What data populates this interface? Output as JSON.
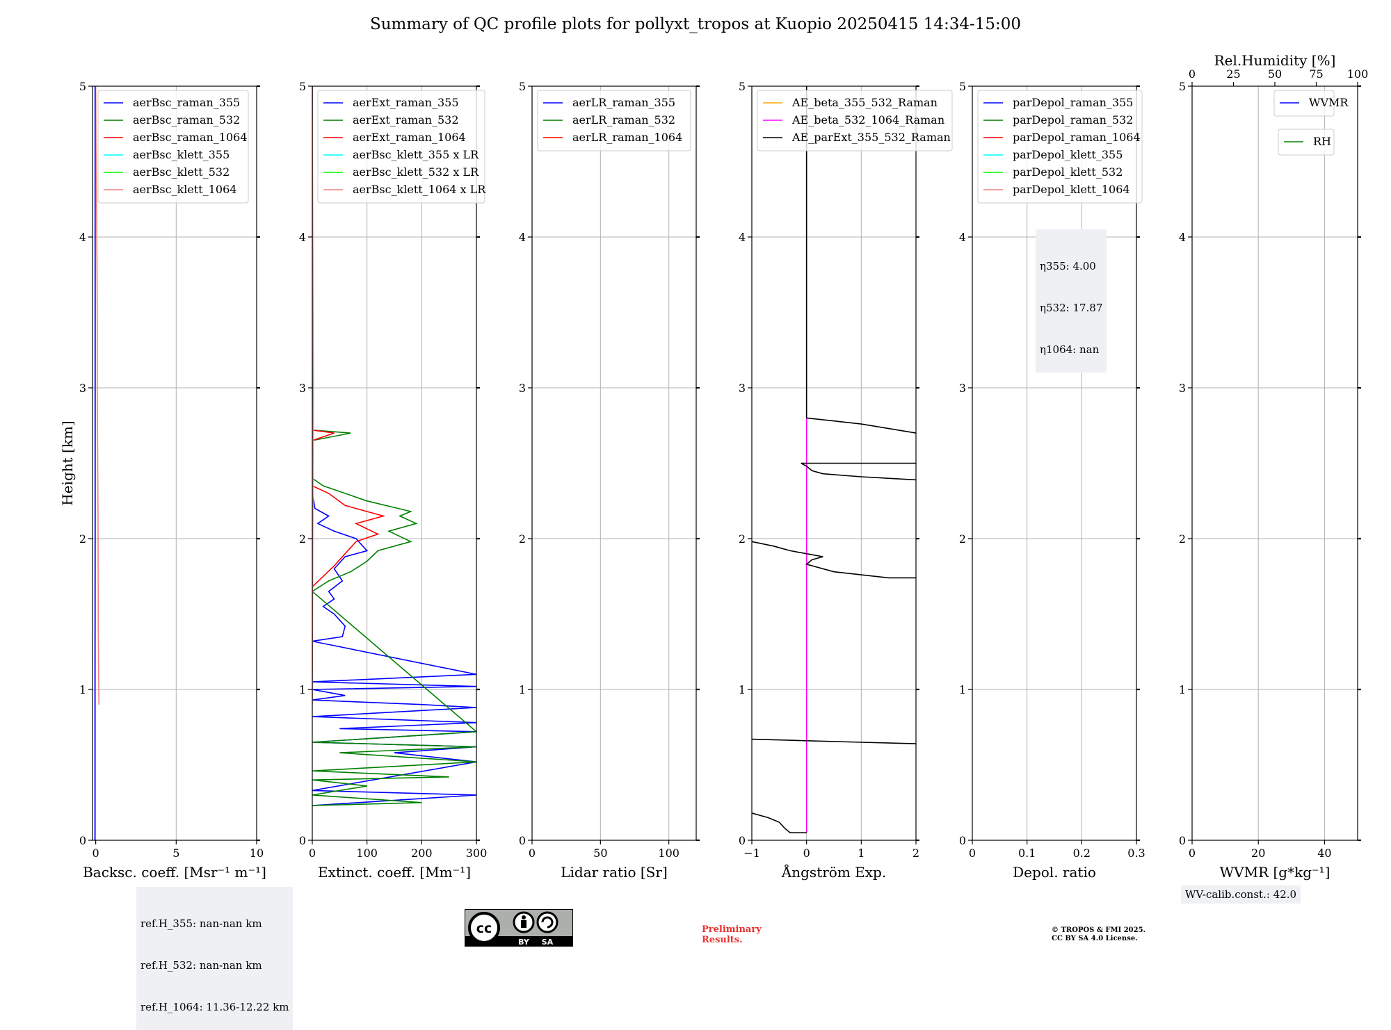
{
  "title": "Summary of QC profile plots for pollyxt_tropos at Kuopio 20250415 14:34-15:00",
  "ylabel": "Height [km]",
  "y_ticks": [
    0,
    1,
    2,
    3,
    4,
    5
  ],
  "ylim": [
    0,
    5
  ],
  "panels": [
    {
      "xlabel": "Backsc. coeff. [Msr⁻¹ m⁻¹]",
      "xlim": [
        -0.2,
        10
      ],
      "xticks": [
        0,
        5,
        10
      ],
      "legend": [
        {
          "label": "aerBsc_raman_355",
          "color": "#0000ff"
        },
        {
          "label": "aerBsc_raman_532",
          "color": "#008000"
        },
        {
          "label": "aerBsc_raman_1064",
          "color": "#ff0000"
        },
        {
          "label": "aerBsc_klett_355",
          "color": "#00ffff"
        },
        {
          "label": "aerBsc_klett_532",
          "color": "#00ff00"
        },
        {
          "label": "aerBsc_klett_1064",
          "color": "#f08080"
        }
      ]
    },
    {
      "xlabel": "Extinct. coeff. [Mm⁻¹]",
      "xlim": [
        0,
        300
      ],
      "xticks": [
        0,
        100,
        200,
        300
      ],
      "legend": [
        {
          "label": "aerExt_raman_355",
          "color": "#0000ff"
        },
        {
          "label": "aerExt_raman_532",
          "color": "#008000"
        },
        {
          "label": "aerExt_raman_1064",
          "color": "#ff0000"
        },
        {
          "label": "aerBsc_klett_355 x LR",
          "color": "#00ffff"
        },
        {
          "label": "aerBsc_klett_532 x LR",
          "color": "#00ff00"
        },
        {
          "label": "aerBsc_klett_1064 x LR",
          "color": "#f08080"
        }
      ]
    },
    {
      "xlabel": "Lidar ratio [Sr]",
      "xlim": [
        0,
        120
      ],
      "xticks": [
        0,
        50,
        100
      ],
      "legend": [
        {
          "label": "aerLR_raman_355",
          "color": "#0000ff"
        },
        {
          "label": "aerLR_raman_532",
          "color": "#008000"
        },
        {
          "label": "aerLR_raman_1064",
          "color": "#ff0000"
        }
      ]
    },
    {
      "xlabel": "Ångström Exp.",
      "xlim": [
        -1,
        2
      ],
      "xticks": [
        -1,
        0,
        1,
        2
      ],
      "legend": [
        {
          "label": "AE_beta_355_532_Raman",
          "color": "#ffa500"
        },
        {
          "label": "AE_beta_532_1064_Raman",
          "color": "#ff00ff"
        },
        {
          "label": "AE_parExt_355_532_Raman",
          "color": "#000000"
        }
      ]
    },
    {
      "xlabel": "Depol. ratio",
      "xlim": [
        0,
        0.3
      ],
      "xticks": [
        0.0,
        0.1,
        0.2,
        0.3
      ],
      "legend": [
        {
          "label": "parDepol_raman_355",
          "color": "#0000ff"
        },
        {
          "label": "parDepol_raman_532",
          "color": "#008000"
        },
        {
          "label": "parDepol_raman_1064",
          "color": "#ff0000"
        },
        {
          "label": "parDepol_klett_355",
          "color": "#00ffff"
        },
        {
          "label": "parDepol_klett_532",
          "color": "#00ff00"
        },
        {
          "label": "parDepol_klett_1064",
          "color": "#f08080"
        }
      ]
    },
    {
      "xlabel": "WVMR [g*kg⁻¹]",
      "xlim": [
        0,
        50
      ],
      "xticks": [
        0,
        20,
        40
      ],
      "top_label": "Rel.Humidity [%]",
      "top_xlim": [
        0,
        100
      ],
      "top_xticks": [
        0,
        25,
        50,
        75,
        100
      ],
      "legend": [
        {
          "label": "WVMR",
          "color": "#0000ff"
        }
      ],
      "legend2": [
        {
          "label": "RH",
          "color": "#008000"
        }
      ]
    }
  ],
  "eta_lines": [
    "η355: 4.00",
    "η532: 17.87",
    "η1064: nan"
  ],
  "refh_lines": [
    "ref.H_355: nan-nan km",
    "ref.H_532: nan-nan km",
    "ref.H_1064: 11.36-12.22 km"
  ],
  "wv_calib": "WV-calib.const.: 42.0",
  "preliminary": [
    "Preliminary",
    "Results."
  ],
  "copyright": [
    "© TROPOS & FMI 2025.",
    "CC BY SA 4.0 License."
  ],
  "cc_badge": {
    "main": "cc",
    "by": "BY",
    "sa": "SA"
  },
  "chart_data": {
    "type": "line",
    "title": "Summary of QC profile plots for pollyxt_tropos at Kuopio 20250415 14:34-15:00",
    "ylabel": "Height [km]",
    "ylim": [
      0,
      5
    ],
    "grid": true,
    "panels": [
      {
        "xlabel": "Backsc. coeff. [Msr⁻¹ m⁻¹]",
        "xlim": [
          -0.2,
          10
        ],
        "series": [
          {
            "name": "aerBsc_klett_1064",
            "color": "#f08080",
            "points": [
              [
                0.0,
                5.0
              ],
              [
                0.02,
                4.6
              ],
              [
                0.05,
                4.2
              ],
              [
                0.08,
                3.8
              ],
              [
                0.1,
                3.4
              ],
              [
                0.1,
                3.0
              ],
              [
                0.12,
                2.6
              ],
              [
                0.14,
                2.2
              ],
              [
                0.15,
                1.8
              ],
              [
                0.16,
                1.4
              ],
              [
                0.18,
                1.1
              ],
              [
                0.2,
                0.9
              ]
            ]
          },
          {
            "name": "aerBsc_raman_355",
            "color": "#0000ff",
            "points": [
              [
                -0.05,
                0.0
              ],
              [
                -0.05,
                1.0
              ],
              [
                -0.04,
                2.0
              ],
              [
                -0.04,
                5.0
              ]
            ]
          }
        ]
      },
      {
        "xlabel": "Extinct. coeff. [Mm⁻¹]",
        "xlim": [
          0,
          300
        ],
        "series": [
          {
            "name": "aerExt_raman_355",
            "color": "#0000ff",
            "points": [
              [
                0,
                0.23
              ],
              [
                300,
                0.3
              ],
              [
                0,
                0.33
              ],
              [
                300,
                0.52
              ],
              [
                150,
                0.58
              ],
              [
                300,
                0.62
              ],
              [
                0,
                0.65
              ],
              [
                300,
                0.72
              ],
              [
                50,
                0.74
              ],
              [
                300,
                0.78
              ],
              [
                0,
                0.82
              ],
              [
                300,
                0.88
              ],
              [
                200,
                0.9
              ],
              [
                0,
                0.93
              ],
              [
                60,
                0.96
              ],
              [
                0,
                1.0
              ],
              [
                300,
                1.02
              ],
              [
                0,
                1.05
              ],
              [
                300,
                1.1
              ],
              [
                0,
                1.32
              ],
              [
                55,
                1.35
              ],
              [
                60,
                1.42
              ],
              [
                40,
                1.5
              ],
              [
                20,
                1.55
              ],
              [
                40,
                1.6
              ],
              [
                30,
                1.65
              ],
              [
                55,
                1.72
              ],
              [
                40,
                1.8
              ],
              [
                60,
                1.88
              ],
              [
                100,
                1.92
              ],
              [
                80,
                2.0
              ],
              [
                40,
                2.05
              ],
              [
                10,
                2.1
              ],
              [
                30,
                2.15
              ],
              [
                5,
                2.2
              ],
              [
                0,
                2.3
              ],
              [
                0,
                5.0
              ]
            ]
          },
          {
            "name": "aerExt_raman_532",
            "color": "#008000",
            "points": [
              [
                0,
                0.23
              ],
              [
                200,
                0.25
              ],
              [
                0,
                0.3
              ],
              [
                100,
                0.36
              ],
              [
                0,
                0.4
              ],
              [
                250,
                0.42
              ],
              [
                0,
                0.46
              ],
              [
                300,
                0.52
              ],
              [
                50,
                0.58
              ],
              [
                300,
                0.62
              ],
              [
                0,
                0.65
              ],
              [
                300,
                0.72
              ],
              [
                0,
                1.65
              ],
              [
                30,
                1.72
              ],
              [
                70,
                1.78
              ],
              [
                100,
                1.85
              ],
              [
                120,
                1.92
              ],
              [
                180,
                1.98
              ],
              [
                140,
                2.05
              ],
              [
                190,
                2.1
              ],
              [
                160,
                2.15
              ],
              [
                180,
                2.18
              ],
              [
                100,
                2.25
              ],
              [
                60,
                2.3
              ],
              [
                20,
                2.35
              ],
              [
                0,
                2.4
              ],
              [
                0,
                2.65
              ],
              [
                70,
                2.7
              ],
              [
                0,
                2.72
              ],
              [
                0,
                5.0
              ]
            ]
          },
          {
            "name": "aerExt_raman_1064",
            "color": "#ff0000",
            "points": [
              [
                0,
                1.68
              ],
              [
                20,
                1.75
              ],
              [
                40,
                1.82
              ],
              [
                60,
                1.9
              ],
              [
                80,
                1.98
              ],
              [
                120,
                2.03
              ],
              [
                80,
                2.1
              ],
              [
                130,
                2.15
              ],
              [
                60,
                2.22
              ],
              [
                30,
                2.3
              ],
              [
                0,
                2.35
              ],
              [
                0,
                2.65
              ],
              [
                40,
                2.7
              ],
              [
                0,
                2.72
              ]
            ]
          },
          {
            "name": "aerBsc_klett_1064 x LR",
            "color": "#f08080",
            "points": [
              [
                0,
                0.9
              ],
              [
                1,
                2.0
              ],
              [
                2,
                3.0
              ],
              [
                1,
                4.0
              ],
              [
                0,
                5.0
              ]
            ]
          }
        ]
      },
      {
        "xlabel": "Lidar ratio [Sr]",
        "xlim": [
          0,
          120
        ],
        "series": []
      },
      {
        "xlabel": "Ångström Exp.",
        "xlim": [
          -1,
          2
        ],
        "series": [
          {
            "name": "AE_beta_532_1064_Raman",
            "color": "#ff00ff",
            "points": [
              [
                0,
                0.05
              ],
              [
                0,
                1.0
              ],
              [
                0,
                2.0
              ],
              [
                0,
                3.0
              ],
              [
                0,
                4.0
              ],
              [
                0,
                5.0
              ]
            ]
          },
          {
            "name": "AE_parExt_355_532_Raman",
            "color": "#000000",
            "segments": [
              [
                [
                  -1,
                  0.18
                ],
                [
                  -0.7,
                  0.15
                ],
                [
                  -0.5,
                  0.12
                ],
                [
                  -0.4,
                  0.08
                ],
                [
                  -0.3,
                  0.05
                ],
                [
                  0,
                  0.05
                ]
              ],
              [
                [
                  -1,
                  0.67
                ],
                [
                  0,
                  0.66
                ],
                [
                  1,
                  0.65
                ],
                [
                  2,
                  0.64
                ]
              ],
              [
                [
                  -1,
                  1.98
                ],
                [
                  -0.6,
                  1.95
                ],
                [
                  -0.3,
                  1.92
                ],
                [
                  0,
                  1.9
                ],
                [
                  0.3,
                  1.88
                ],
                [
                  0.1,
                  1.86
                ],
                [
                  0,
                  1.83
                ],
                [
                  0.5,
                  1.78
                ],
                [
                  1.0,
                  1.76
                ],
                [
                  1.5,
                  1.74
                ],
                [
                  2,
                  1.74
                ]
              ],
              [
                [
                  -0.1,
                  2.5
                ],
                [
                  0,
                  2.48
                ],
                [
                  0.1,
                  2.45
                ],
                [
                  0.3,
                  2.43
                ],
                [
                  1,
                  2.41
                ],
                [
                  2,
                  2.39
                ]
              ],
              [
                [
                  -0.1,
                  2.5
                ],
                [
                  2,
                  2.5
                ]
              ],
              [
                [
                  0,
                  2.8
                ],
                [
                  0.5,
                  2.78
                ],
                [
                  1,
                  2.76
                ],
                [
                  1.5,
                  2.73
                ],
                [
                  2,
                  2.7
                ]
              ],
              [
                [
                  0,
                  2.8
                ],
                [
                  0,
                  5.0
                ]
              ]
            ]
          }
        ]
      },
      {
        "xlabel": "Depol. ratio",
        "xlim": [
          0,
          0.3
        ],
        "series": []
      },
      {
        "xlabel": "WVMR [g*kg⁻¹]",
        "xlim": [
          0,
          50
        ],
        "series": []
      }
    ]
  }
}
